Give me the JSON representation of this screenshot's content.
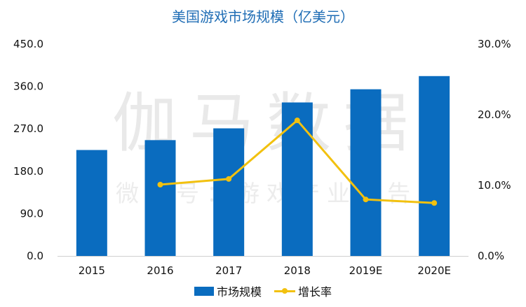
{
  "chart_data": {
    "type": "bar",
    "title": "美国游戏市场规模（亿美元）",
    "categories": [
      "2015",
      "2016",
      "2017",
      "2018",
      "2019E",
      "2020E"
    ],
    "series": [
      {
        "name": "市场规模",
        "type": "bar",
        "axis": "left",
        "color": "#0a6cbf",
        "values": [
          225.0,
          246.0,
          271.0,
          326.0,
          354.0,
          382.0
        ]
      },
      {
        "name": "增长率",
        "type": "line",
        "axis": "right",
        "color": "#f2c10f",
        "values": [
          null,
          0.101,
          0.109,
          0.192,
          0.08,
          0.075
        ]
      }
    ],
    "y_left": {
      "ylim": [
        0,
        450
      ],
      "ticks": [
        "0.0",
        "90.0",
        "180.0",
        "270.0",
        "360.0",
        "450.0"
      ]
    },
    "y_right": {
      "ylim": [
        0,
        0.3
      ],
      "ticks": [
        "0.0%",
        "10.0%",
        "20.0%",
        "30.0%"
      ]
    },
    "grid": false,
    "legend": "bottom-center"
  },
  "watermark": {
    "main": "伽马数据",
    "sub": "微信号：游戏产业报告"
  }
}
